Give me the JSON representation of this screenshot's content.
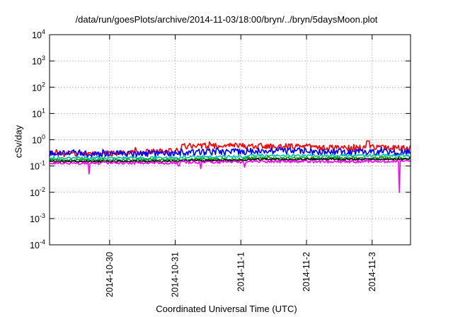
{
  "chart_data": {
    "type": "line",
    "title": "/data/run/goesPlots/archive/2014-11-03/18:00/bryn/../bryn/5daysMoon.plot",
    "xlabel": "Coordinated Universal Time (UTC)",
    "ylabel": "cSv/day",
    "yscale": "log",
    "ylim": [
      0.0001,
      10000
    ],
    "xlim": [
      0,
      5.5
    ],
    "y_ticks": [
      {
        "base": "10",
        "exp": "4",
        "value": 10000
      },
      {
        "base": "10",
        "exp": "3",
        "value": 1000
      },
      {
        "base": "10",
        "exp": "2",
        "value": 100
      },
      {
        "base": "10",
        "exp": "1",
        "value": 10
      },
      {
        "base": "10",
        "exp": "0",
        "value": 1
      },
      {
        "base": "10",
        "exp": "-1",
        "value": 0.1
      },
      {
        "base": "10",
        "exp": "-2",
        "value": 0.01
      },
      {
        "base": "10",
        "exp": "-3",
        "value": 0.001
      },
      {
        "base": "10",
        "exp": "-4",
        "value": 0.0001
      }
    ],
    "x_ticks": [
      {
        "label": "2014-10-30",
        "value": 0.915
      },
      {
        "label": "2014-10-31",
        "value": 1.915
      },
      {
        "label": "2014-11-1",
        "value": 2.915
      },
      {
        "label": "2014-11-2",
        "value": 3.915
      },
      {
        "label": "2014-11-3",
        "value": 4.915
      }
    ],
    "grid": true,
    "series": [
      {
        "color": "#ff0000",
        "level": [
          0.3,
          0.3,
          0.6,
          0.6,
          0.5
        ],
        "noise": 0.25,
        "dips": []
      },
      {
        "color": "#0000ff",
        "level": [
          0.3,
          0.3,
          0.35,
          0.4,
          0.35
        ],
        "noise": 0.28,
        "dips": []
      },
      {
        "color": "#00c0b0",
        "level": [
          0.2,
          0.2,
          0.22,
          0.25,
          0.25
        ],
        "noise": 0.12,
        "dips": []
      },
      {
        "color": "#00a000",
        "level": [
          0.17,
          0.17,
          0.18,
          0.2,
          0.2
        ],
        "noise": 0.1,
        "dips": []
      },
      {
        "color": "#000000",
        "level": [
          0.15,
          0.15,
          0.16,
          0.18,
          0.18
        ],
        "noise": 0.08,
        "dips": []
      },
      {
        "color": "#ff00ff",
        "level": [
          0.13,
          0.13,
          0.14,
          0.15,
          0.15
        ],
        "noise": 0.12,
        "dips": [
          [
            0.6,
            0.05
          ],
          [
            1.97,
            0.1
          ],
          [
            2.3,
            0.08
          ],
          [
            2.97,
            0.09
          ],
          [
            5.33,
            0.01
          ]
        ]
      }
    ]
  }
}
